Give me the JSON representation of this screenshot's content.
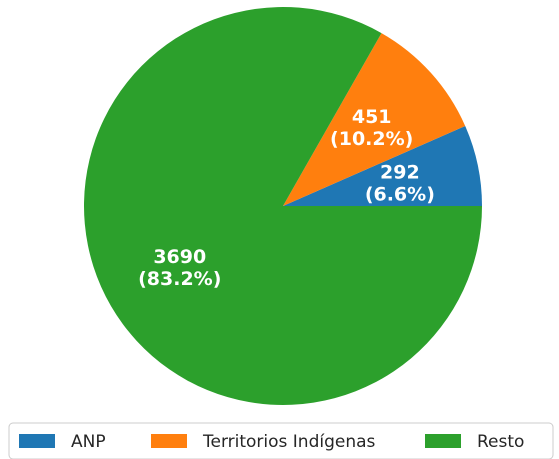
{
  "chart_data": {
    "type": "pie",
    "title": "",
    "categories": [
      "ANP",
      "Territorios Indígenas",
      "Resto"
    ],
    "values": [
      292,
      451,
      3690
    ],
    "percent_labels": [
      "(6.6%)",
      "(10.2%)",
      "(83.2%)"
    ],
    "value_labels": [
      "292",
      "451",
      "3690"
    ],
    "colors": [
      "#1f77b4",
      "#ff7f0e",
      "#2ca02c"
    ],
    "start_angle_deg": 0,
    "direction": "counterclockwise",
    "legend": {
      "position": "bottom",
      "columns": 3
    }
  }
}
